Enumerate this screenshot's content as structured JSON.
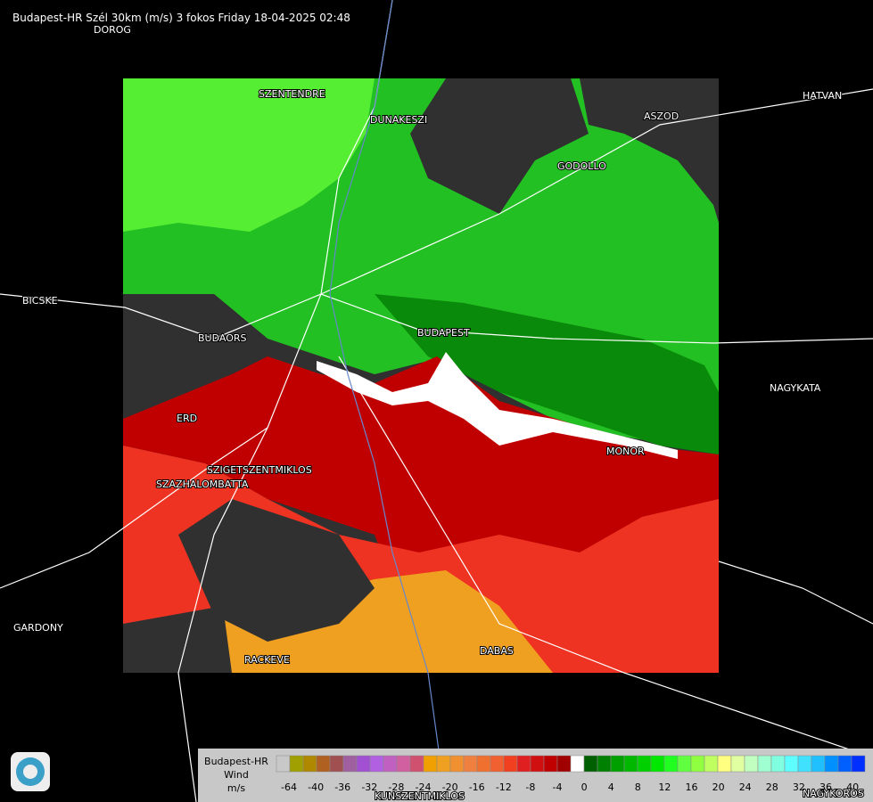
{
  "title": "Budapest-HR Szél 30km (m/s) 3 fokos Friday 18-04-2025 02:48",
  "places": [
    "DOROG",
    "SZENTENDRE",
    "DUNAKESZI",
    "ASZOD",
    "HATVAN",
    "GODOLLO",
    "BICSKE",
    "BUDAORS",
    "BUDAPEST",
    "NAGYKATA",
    "ERD",
    "MONOR",
    "SZIGETSZENTMIKLOS",
    "SZAZHALOMBATTA",
    "GARDONY",
    "RACKEVE",
    "DABAS",
    "KUNSZENTMIKLOS",
    "NAGYKOROS"
  ],
  "legend": {
    "labels": [
      "Budapest-HR",
      "Wind",
      "m/s"
    ],
    "colors": [
      "#c8c8c8",
      "#a0a000",
      "#b08800",
      "#b06020",
      "#a05050",
      "#a060a0",
      "#a050d0",
      "#b060e0",
      "#c060c0",
      "#d060a0",
      "#d05070",
      "#f0a000",
      "#f0a020",
      "#f09030",
      "#f08040",
      "#f07030",
      "#f06030",
      "#f04020",
      "#e02020",
      "#d01010",
      "#c00000",
      "#a00000",
      "#ffffff",
      "#006000",
      "#008000",
      "#00a000",
      "#00b800",
      "#00d000",
      "#00e800",
      "#20ff20",
      "#60ff40",
      "#90ff40",
      "#c0ff60",
      "#ffff80",
      "#e0ffa0",
      "#c0ffc0",
      "#a0ffd0",
      "#80ffe0",
      "#60ffff",
      "#40e0ff",
      "#20c0ff",
      "#0090ff",
      "#0060ff",
      "#0030ff"
    ],
    "ticks": [
      -64,
      -40,
      -36,
      -32,
      -28,
      -24,
      -20,
      -16,
      -12,
      -8,
      -4,
      0,
      4,
      8,
      12,
      16,
      20,
      24,
      28,
      32,
      36,
      40
    ]
  }
}
